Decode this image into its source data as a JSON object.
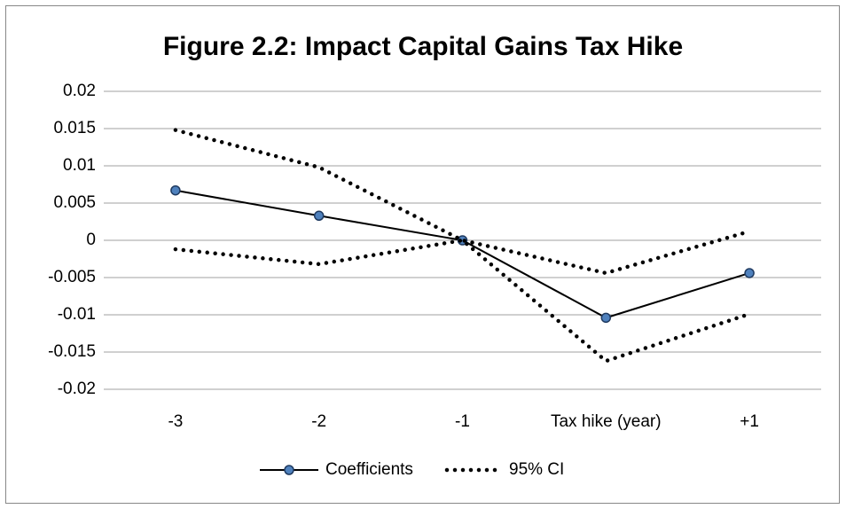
{
  "chart_data": {
    "type": "line",
    "title": "Figure 2.2: Impact Capital Gains Tax Hike",
    "categories": [
      "-3",
      "-2",
      "-1",
      "Tax hike (year)",
      "+1"
    ],
    "series": [
      {
        "name": "Coefficients",
        "color": "#000000",
        "marker_color": "#4f81bd",
        "values": [
          0.0067,
          0.0033,
          0,
          -0.0104,
          -0.0044
        ]
      },
      {
        "name": "95% CI",
        "color": "#000000",
        "style": "dotted",
        "upper": [
          0.0148,
          0.0098,
          0,
          -0.0044,
          0.0012
        ],
        "lower": [
          -0.0012,
          -0.0032,
          0,
          -0.0162,
          -0.0099
        ]
      }
    ],
    "ylim": [
      -0.02,
      0.02
    ],
    "yticks": [
      0.02,
      0.015,
      0.01,
      0.005,
      0,
      -0.005,
      -0.01,
      -0.015,
      -0.02
    ],
    "grid": true,
    "legend": "bottom"
  }
}
